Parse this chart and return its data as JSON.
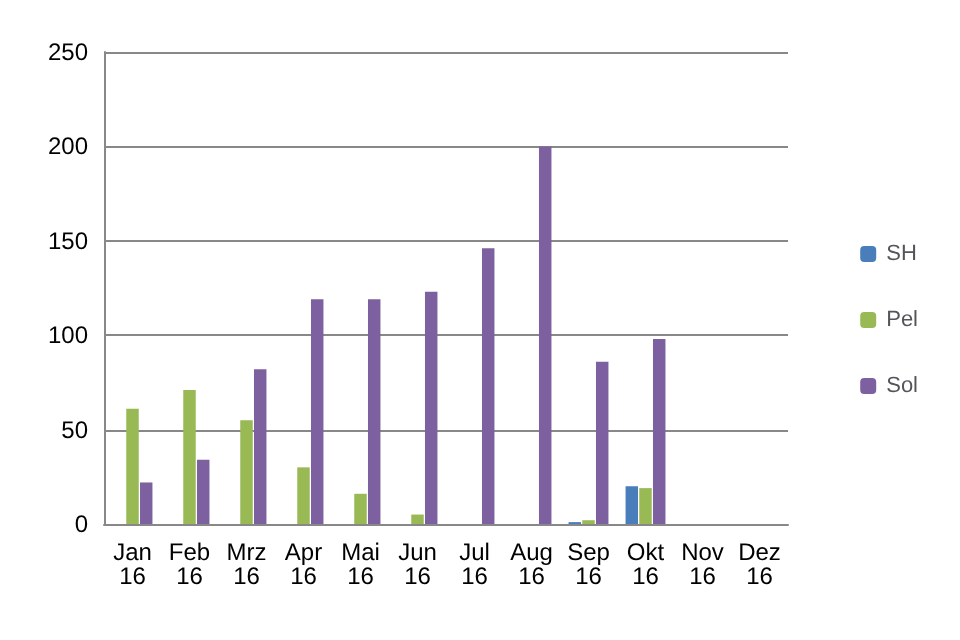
{
  "chart_data": {
    "type": "bar",
    "categories": [
      "Jan 16",
      "Feb 16",
      "Mrz 16",
      "Apr 16",
      "Mai 16",
      "Jun 16",
      "Jul 16",
      "Aug 16",
      "Sep 16",
      "Okt 16",
      "Nov 16",
      "Dez 16"
    ],
    "series": [
      {
        "name": "SH",
        "color": "#4a7ebb",
        "values": [
          0,
          0,
          0,
          0,
          0,
          0,
          0,
          0,
          1,
          20,
          0,
          0
        ]
      },
      {
        "name": "Pel",
        "color": "#98b954",
        "values": [
          61,
          71,
          55,
          30,
          16,
          5,
          null,
          null,
          2,
          19,
          0,
          0
        ]
      },
      {
        "name": "Sol",
        "color": "#7d60a0",
        "values": [
          22,
          34,
          82,
          119,
          119,
          123,
          146,
          200,
          86,
          98,
          0,
          0
        ]
      }
    ],
    "ylim": [
      0,
      250
    ],
    "yticks": [
      0,
      50,
      100,
      150,
      200,
      250
    ],
    "grid": "y",
    "legend": "right"
  }
}
